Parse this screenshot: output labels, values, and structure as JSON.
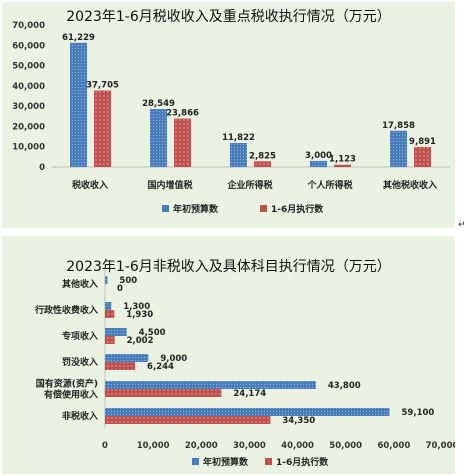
{
  "colors": {
    "budget": "#4a7ebb",
    "actual": "#c0504d",
    "panel_bg": "#eaf3e1"
  },
  "side_mark": "↵",
  "chart_data": [
    {
      "type": "bar",
      "title": "2023年1-6月税收收入及重点税收执行情况（万元）",
      "categories": [
        "税收收入",
        "国内增值税",
        "企业所得税",
        "个人所得税",
        "其他税收收入"
      ],
      "series": [
        {
          "name": "年初预算数",
          "values": [
            61229,
            28549,
            11822,
            3000,
            17858
          ],
          "labels": [
            "61,229",
            "28,549",
            "11,822",
            "3,000",
            "17,858"
          ]
        },
        {
          "name": "1-6月执行数",
          "values": [
            37705,
            23866,
            2825,
            1123,
            9891
          ],
          "labels": [
            "37,705",
            "23,866",
            "2,825",
            "1,123",
            "9,891"
          ]
        }
      ],
      "yticks": [
        "0",
        "10,000",
        "20,000",
        "30,000",
        "40,000",
        "50,000",
        "60,000",
        "70,000"
      ],
      "ylim": [
        0,
        70000
      ],
      "legend": "bottom"
    },
    {
      "type": "bar",
      "orientation": "horizontal",
      "title": "2023年1-6月非税收入及具体科目执行情况（万元）",
      "categories": [
        "其他收入",
        "行政性收费收入",
        "专项收入",
        "罚没收入",
        "国有资源(资产)有偿使用收入",
        "非税收入"
      ],
      "category_lines": [
        [
          "其他收入"
        ],
        [
          "行政性收费收入"
        ],
        [
          "专项收入"
        ],
        [
          "罚没收入"
        ],
        [
          "国有资源(资产)",
          "有偿使用收入"
        ],
        [
          "非税收入"
        ]
      ],
      "series": [
        {
          "name": "年初预算数",
          "values": [
            500,
            1300,
            4500,
            9000,
            43800,
            59100
          ],
          "labels": [
            "500",
            "1,300",
            "4,500",
            "9,000",
            "43,800",
            "59,100"
          ]
        },
        {
          "name": "1-6月执行数",
          "values": [
            0,
            1930,
            2002,
            6244,
            24174,
            34350
          ],
          "labels": [
            "0",
            "1,930",
            "2,002",
            "6,244",
            "24,174",
            "34,350"
          ]
        }
      ],
      "xticks": [
        "0",
        "10,000",
        "20,000",
        "30,000",
        "40,000",
        "50,000",
        "60,000",
        "70,000"
      ],
      "xlim": [
        0,
        70000
      ],
      "legend": "bottom"
    }
  ]
}
